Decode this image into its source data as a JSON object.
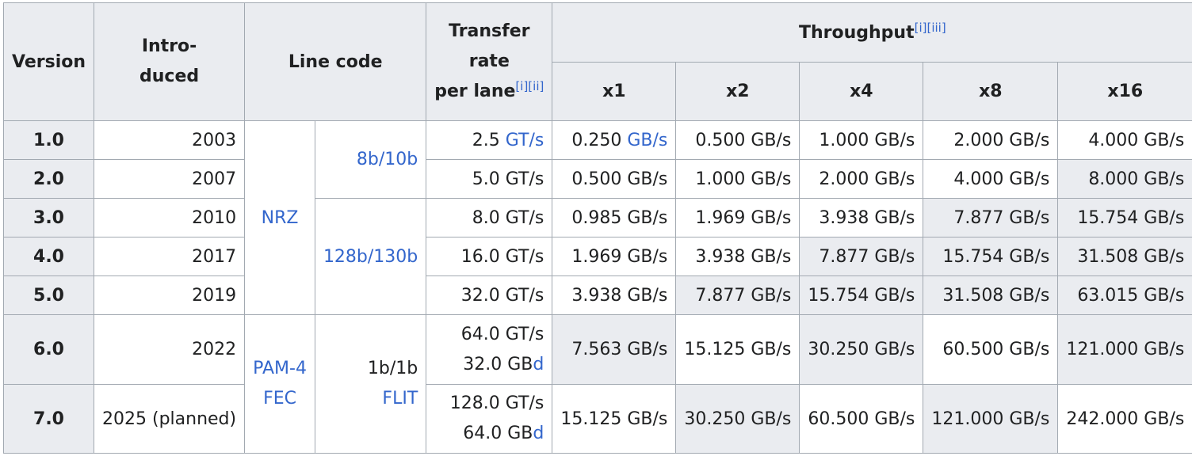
{
  "headers": {
    "version": "Version",
    "introduced_l1": "Intro-",
    "introduced_l2": "duced",
    "line_code": "Line code",
    "transfer_l1": "Transfer",
    "transfer_l2": "rate",
    "transfer_l3": "per lane",
    "transfer_sup": "[i][ii]",
    "throughput": "Throughput",
    "throughput_sup": "[i][iii]",
    "lanes": [
      "x1",
      "x2",
      "x4",
      "x8",
      "x16"
    ]
  },
  "line_codes": {
    "nrz": "NRZ",
    "b8b10b": "8b/10b",
    "b128b130b": "128b/130b",
    "pam4": "PAM-4",
    "fec": "FEC",
    "b1b1b": "1b/1b",
    "flit": "FLIT"
  },
  "units": {
    "gts": "GT/s",
    "gbs": "GB/s",
    "gb_prefix": "GB",
    "gb_suffix": "d"
  },
  "rows": [
    {
      "version": "1.0",
      "year": "2003",
      "rate": "2.5",
      "t": [
        "0.250",
        "0.500 GB/s",
        "1.000 GB/s",
        "2.000 GB/s",
        "4.000 GB/s"
      ]
    },
    {
      "version": "2.0",
      "year": "2007",
      "rate": "5.0 GT/s",
      "t": [
        "0.500 GB/s",
        "1.000 GB/s",
        "2.000 GB/s",
        "4.000 GB/s",
        "8.000 GB/s"
      ]
    },
    {
      "version": "3.0",
      "year": "2010",
      "rate": "8.0 GT/s",
      "t": [
        "0.985 GB/s",
        "1.969 GB/s",
        "3.938 GB/s",
        "7.877 GB/s",
        "15.754 GB/s"
      ]
    },
    {
      "version": "4.0",
      "year": "2017",
      "rate": "16.0 GT/s",
      "t": [
        "1.969 GB/s",
        "3.938 GB/s",
        "7.877 GB/s",
        "15.754 GB/s",
        "31.508 GB/s"
      ]
    },
    {
      "version": "5.0",
      "year": "2019",
      "rate": "32.0 GT/s",
      "t": [
        "3.938 GB/s",
        "7.877 GB/s",
        "15.754 GB/s",
        "31.508 GB/s",
        "63.015 GB/s"
      ]
    },
    {
      "version": "6.0",
      "year": "2022",
      "rate_l1": "64.0 GT/s",
      "rate_l2": "32.0",
      "t": [
        "7.563 GB/s",
        "15.125 GB/s",
        "30.250 GB/s",
        "60.500 GB/s",
        "121.000 GB/s"
      ]
    },
    {
      "version": "7.0",
      "year": "2025 (planned)",
      "rate_l1": "128.0 GT/s",
      "rate_l2": "64.0",
      "t": [
        "15.125 GB/s",
        "30.250 GB/s",
        "60.500 GB/s",
        "121.000 GB/s",
        "242.000 GB/s"
      ]
    }
  ]
}
